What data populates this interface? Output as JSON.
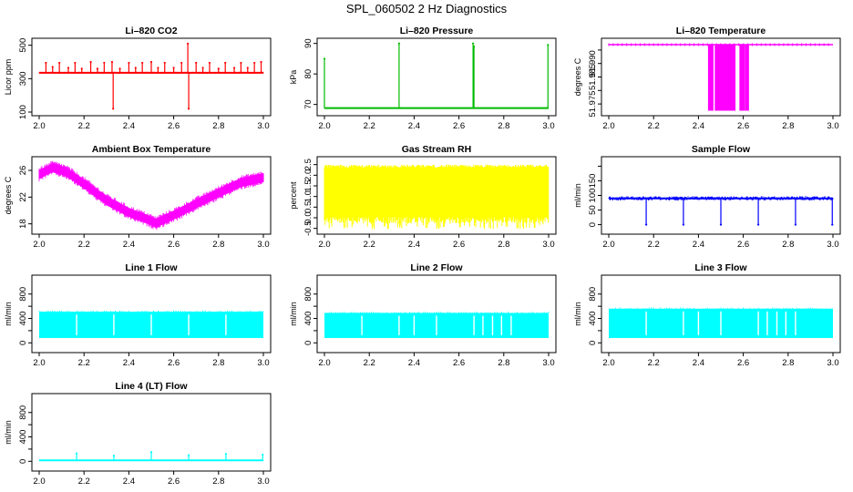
{
  "figure_title": "SPL_060502  2 Hz Diagnostics",
  "colors": {
    "red": "#ff0000",
    "green": "#00bb00",
    "magenta": "#ff00ff",
    "yellow": "#ffff00",
    "blue": "#0000ff",
    "cyan": "#00ffff"
  },
  "chart_data": [
    {
      "id": "co2",
      "type": "line",
      "title": "Li–820 CO2",
      "ylabel": "Licor ppm",
      "color": "#ff0000",
      "xlim": [
        2.0,
        3.0
      ],
      "ylim": [
        100,
        520
      ],
      "xticks": [
        2.0,
        2.2,
        2.4,
        2.6,
        2.8,
        3.0
      ],
      "xtick_labels": [
        "2.0",
        "2.2",
        "2.4",
        "2.6",
        "2.8",
        "3.0"
      ],
      "yticks": [
        100,
        300,
        500
      ],
      "ytick_labels": [
        "100",
        "300",
        "500"
      ],
      "series": [
        {
          "name": "CO2",
          "baseline": 335,
          "noise": 6,
          "spikes": [
            {
              "x": 2.03,
              "y": 395
            },
            {
              "x": 2.06,
              "y": 370
            },
            {
              "x": 2.09,
              "y": 395
            },
            {
              "x": 2.13,
              "y": 365
            },
            {
              "x": 2.16,
              "y": 395
            },
            {
              "x": 2.19,
              "y": 360
            },
            {
              "x": 2.23,
              "y": 400
            },
            {
              "x": 2.26,
              "y": 360
            },
            {
              "x": 2.29,
              "y": 395
            },
            {
              "x": 2.325,
              "y": 400
            },
            {
              "x": 2.33,
              "y": 120
            },
            {
              "x": 2.36,
              "y": 360
            },
            {
              "x": 2.4,
              "y": 395
            },
            {
              "x": 2.43,
              "y": 365
            },
            {
              "x": 2.46,
              "y": 395
            },
            {
              "x": 2.5,
              "y": 400
            },
            {
              "x": 2.53,
              "y": 365
            },
            {
              "x": 2.56,
              "y": 395
            },
            {
              "x": 2.6,
              "y": 365
            },
            {
              "x": 2.635,
              "y": 395
            },
            {
              "x": 2.663,
              "y": 510
            },
            {
              "x": 2.667,
              "y": 120
            },
            {
              "x": 2.7,
              "y": 395
            },
            {
              "x": 2.73,
              "y": 365
            },
            {
              "x": 2.76,
              "y": 395
            },
            {
              "x": 2.8,
              "y": 360
            },
            {
              "x": 2.83,
              "y": 395
            },
            {
              "x": 2.87,
              "y": 365
            },
            {
              "x": 2.9,
              "y": 395
            },
            {
              "x": 2.93,
              "y": 365
            },
            {
              "x": 2.96,
              "y": 395
            },
            {
              "x": 2.99,
              "y": 400
            }
          ]
        }
      ]
    },
    {
      "id": "pressure",
      "type": "line",
      "title": "Li–820 Pressure",
      "ylabel": "kPa",
      "color": "#00bb00",
      "xlim": [
        2.0,
        3.0
      ],
      "ylim": [
        67.5,
        90.5
      ],
      "xticks": [
        2.0,
        2.2,
        2.4,
        2.6,
        2.8,
        3.0
      ],
      "xtick_labels": [
        "2.0",
        "2.2",
        "2.4",
        "2.6",
        "2.8",
        "3.0"
      ],
      "yticks": [
        70,
        80,
        90
      ],
      "ytick_labels": [
        "70",
        "80",
        "90"
      ],
      "series": [
        {
          "name": "Pressure",
          "baseline": 68.8,
          "noise": 0.2,
          "spikes": [
            {
              "x": 2.0,
              "y": 85
            },
            {
              "x": 2.333,
              "y": 90
            },
            {
              "x": 2.663,
              "y": 90
            },
            {
              "x": 2.667,
              "y": 89
            },
            {
              "x": 2.997,
              "y": 89.5
            }
          ]
        }
      ]
    },
    {
      "id": "licor-temp",
      "type": "line",
      "title": "Li–820 Temperature",
      "ylabel": "degrees C",
      "color": "#ff00ff",
      "xlim": [
        2.0,
        3.0
      ],
      "ylim": [
        51.972,
        51.998
      ],
      "xticks": [
        2.0,
        2.2,
        2.4,
        2.6,
        2.8,
        3.0
      ],
      "xtick_labels": [
        "2.0",
        "2.2",
        "2.4",
        "2.6",
        "2.8",
        "3.0"
      ],
      "yticks": [
        51.975,
        51.98,
        51.985,
        51.99,
        51.995
      ],
      "ytick_labels": [
        "51.975",
        "",
        "51.985",
        "51.990",
        ""
      ],
      "series": [
        {
          "name": "Temperature",
          "baseline": 51.997,
          "low": 51.9725,
          "dropout_bands": [
            [
              2.445,
              2.465
            ],
            [
              2.475,
              2.565
            ],
            [
              2.585,
              2.605
            ],
            [
              2.61,
              2.625
            ]
          ]
        }
      ]
    },
    {
      "id": "ambient",
      "type": "area",
      "title": "Ambient Box Temperature",
      "ylabel": "degrees C",
      "color": "#ff00ff",
      "xlim": [
        2.0,
        3.0
      ],
      "ylim": [
        17,
        27.5
      ],
      "xticks": [
        2.0,
        2.2,
        2.4,
        2.6,
        2.8,
        3.0
      ],
      "xtick_labels": [
        "2.0",
        "2.2",
        "2.4",
        "2.6",
        "2.8",
        "3.0"
      ],
      "yticks": [
        18,
        22,
        26
      ],
      "ytick_labels": [
        "18",
        "22",
        "26"
      ],
      "series": [
        {
          "name": "Ambient",
          "band_width": 1.2,
          "x": [
            2.0,
            2.06,
            2.12,
            2.2,
            2.3,
            2.4,
            2.48,
            2.52,
            2.56,
            2.62,
            2.7,
            2.8,
            2.9,
            3.0
          ],
          "y": [
            25.4,
            26.4,
            25.8,
            24.0,
            21.5,
            19.7,
            18.7,
            18.1,
            18.7,
            19.6,
            21.0,
            22.6,
            24.2,
            24.9
          ]
        }
      ]
    },
    {
      "id": "rh",
      "type": "area",
      "title": "Gas Stream RH",
      "ylabel": "percent",
      "color": "#ffff00",
      "xlim": [
        2.0,
        3.0
      ],
      "ylim": [
        -0.6,
        2.7
      ],
      "xticks": [
        2.0,
        2.2,
        2.4,
        2.6,
        2.8,
        3.0
      ],
      "xtick_labels": [
        "2.0",
        "2.2",
        "2.4",
        "2.6",
        "2.8",
        "3.0"
      ],
      "yticks": [
        -0.5,
        0,
        0.5,
        1.0,
        1.5,
        2.0,
        2.5
      ],
      "ytick_labels": [
        "-0.5",
        "0.0",
        "0.5",
        "1.0",
        "1.5",
        "2.0",
        "2.5"
      ],
      "series": [
        {
          "name": "RH",
          "upper": 2.35,
          "lower": 0.05,
          "min": -0.55,
          "max": 2.5
        }
      ]
    },
    {
      "id": "sample-flow",
      "type": "line",
      "title": "Sample Flow",
      "ylabel": "ml/min",
      "color": "#0000ff",
      "xlim": [
        2.0,
        3.0
      ],
      "ylim": [
        -20,
        220
      ],
      "xticks": [
        2.0,
        2.2,
        2.4,
        2.6,
        2.8,
        3.0
      ],
      "xtick_labels": [
        "2.0",
        "2.2",
        "2.4",
        "2.6",
        "2.8",
        "3.0"
      ],
      "yticks": [
        0,
        50,
        100,
        150,
        200
      ],
      "ytick_labels": [
        "0",
        "50",
        "100",
        "150",
        ""
      ],
      "series": [
        {
          "name": "Sample Flow",
          "baseline": 90,
          "noise": 7,
          "spikes": [
            {
              "x": 2.167,
              "y": 0
            },
            {
              "x": 2.333,
              "y": 0
            },
            {
              "x": 2.5,
              "y": 0
            },
            {
              "x": 2.667,
              "y": 0
            },
            {
              "x": 2.833,
              "y": 0
            },
            {
              "x": 2.997,
              "y": 0
            }
          ]
        }
      ]
    },
    {
      "id": "line1",
      "type": "area",
      "title": "Line 1 Flow",
      "ylabel": "ml/min",
      "color": "#00ffff",
      "xlim": [
        2.0,
        3.0
      ],
      "ylim": [
        -100,
        1050
      ],
      "xticks": [
        2.0,
        2.2,
        2.4,
        2.6,
        2.8,
        3.0
      ],
      "xtick_labels": [
        "2.0",
        "2.2",
        "2.4",
        "2.6",
        "2.8",
        "3.0"
      ],
      "yticks": [
        0,
        200,
        400,
        600,
        800
      ],
      "ytick_labels": [
        "0",
        "",
        "400",
        "",
        "800"
      ],
      "series": [
        {
          "name": "Line 1",
          "upper": 510,
          "lower": 80,
          "gaps": [
            2.167,
            2.333,
            2.5,
            2.667,
            2.833
          ]
        }
      ]
    },
    {
      "id": "line2",
      "type": "area",
      "title": "Line 2 Flow",
      "ylabel": "ml/min",
      "color": "#00ffff",
      "xlim": [
        2.0,
        3.0
      ],
      "ylim": [
        -100,
        1050
      ],
      "xticks": [
        2.0,
        2.2,
        2.4,
        2.6,
        2.8,
        3.0
      ],
      "xtick_labels": [
        "2.0",
        "2.2",
        "2.4",
        "2.6",
        "2.8",
        "3.0"
      ],
      "yticks": [
        0,
        200,
        400,
        600,
        800
      ],
      "ytick_labels": [
        "0",
        "",
        "400",
        "",
        "800"
      ],
      "series": [
        {
          "name": "Line 2",
          "upper": 490,
          "lower": 80,
          "gaps": [
            2.167,
            2.333,
            2.4,
            2.5,
            2.667,
            2.707,
            2.75,
            2.79,
            2.833
          ]
        }
      ]
    },
    {
      "id": "line3",
      "type": "area",
      "title": "Line 3 Flow",
      "ylabel": "ml/min",
      "color": "#00ffff",
      "xlim": [
        2.0,
        3.0
      ],
      "ylim": [
        -100,
        1050
      ],
      "xticks": [
        2.0,
        2.2,
        2.4,
        2.6,
        2.8,
        3.0
      ],
      "xtick_labels": [
        "2.0",
        "2.2",
        "2.4",
        "2.6",
        "2.8",
        "3.0"
      ],
      "yticks": [
        0,
        200,
        400,
        600,
        800
      ],
      "ytick_labels": [
        "0",
        "",
        "400",
        "",
        "800"
      ],
      "series": [
        {
          "name": "Line 3",
          "upper": 560,
          "lower": 80,
          "gaps": [
            2.167,
            2.333,
            2.4,
            2.5,
            2.667,
            2.707,
            2.75,
            2.79,
            2.833
          ]
        }
      ]
    },
    {
      "id": "line4",
      "type": "line",
      "title": "Line 4 (LT) Flow",
      "ylabel": "ml/min",
      "color": "#00ffff",
      "xlim": [
        2.0,
        3.0
      ],
      "ylim": [
        -100,
        1050
      ],
      "xticks": [
        2.0,
        2.2,
        2.4,
        2.6,
        2.8,
        3.0
      ],
      "xtick_labels": [
        "2.0",
        "2.2",
        "2.4",
        "2.6",
        "2.8",
        "3.0"
      ],
      "yticks": [
        0,
        200,
        400,
        600,
        800
      ],
      "ytick_labels": [
        "0",
        "",
        "400",
        "",
        "800"
      ],
      "series": [
        {
          "name": "Line 4",
          "baseline": 15,
          "noise": 3,
          "spikes": [
            {
              "x": 2.167,
              "y": 130
            },
            {
              "x": 2.333,
              "y": 90
            },
            {
              "x": 2.5,
              "y": 150
            },
            {
              "x": 2.667,
              "y": 100
            },
            {
              "x": 2.833,
              "y": 120
            },
            {
              "x": 2.997,
              "y": 110
            }
          ]
        }
      ]
    }
  ]
}
